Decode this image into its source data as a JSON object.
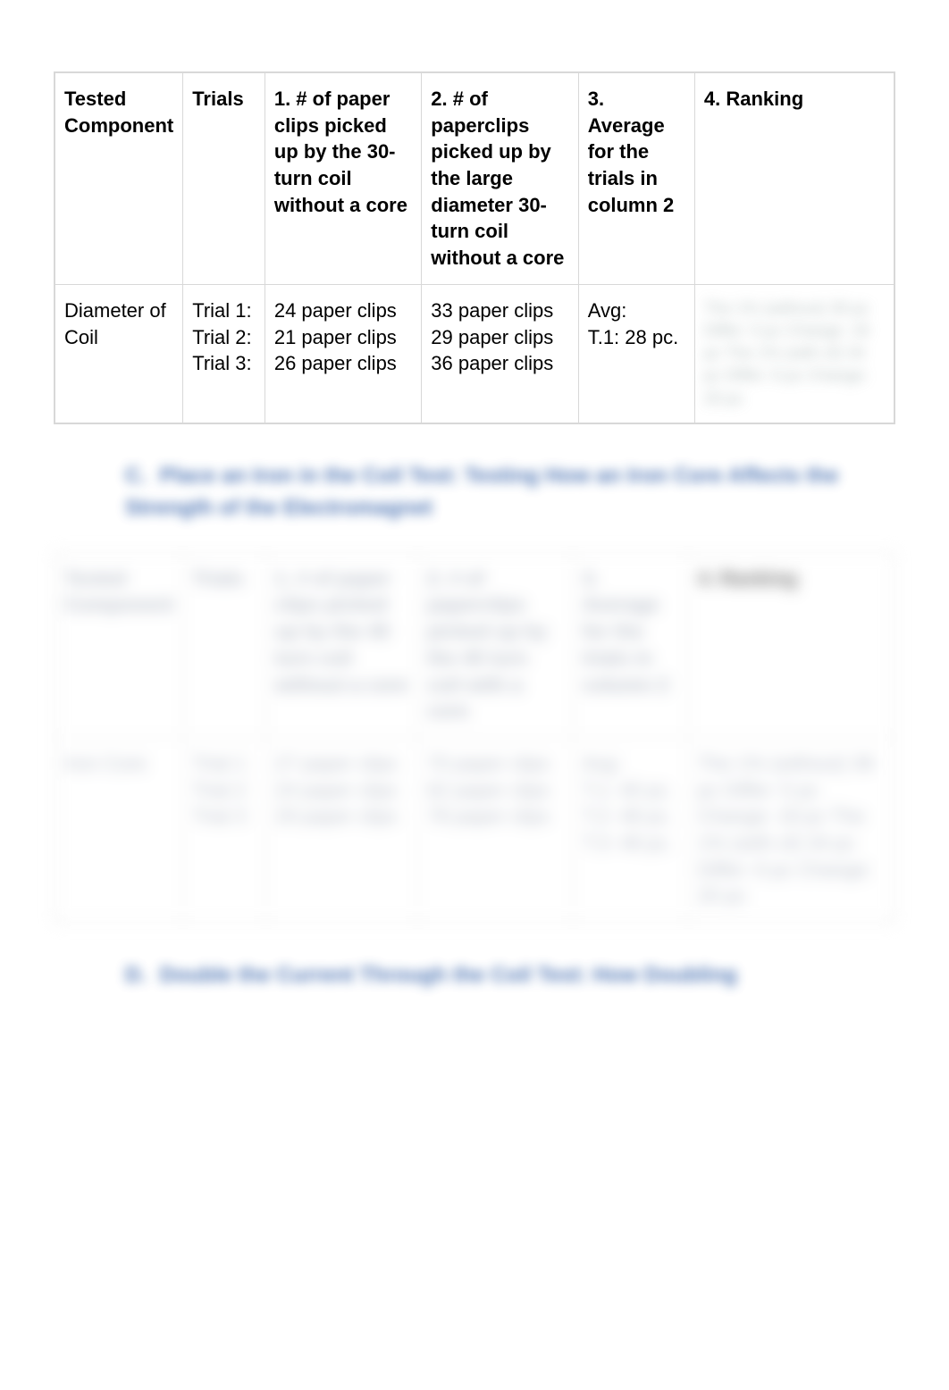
{
  "table1": {
    "headers": {
      "tested": "Tested Component",
      "trials": "Trials",
      "c1": "1. # of paper clips picked up by the 30-turn coil without a core",
      "c2": "2. # of paperclips picked up by the large diameter 30-turn coil without a core",
      "avg": "3. Average for the trials in column 2",
      "rank": "4. Ranking"
    },
    "row": {
      "tested": "Diameter of Coil",
      "trials": [
        "Trial 1:",
        "Trial 2:",
        "Trial 3:"
      ],
      "c1": [
        "24 paper clips",
        "21 paper clips",
        "26 paper clips"
      ],
      "c2": [
        "33 paper clips",
        "29 paper clips",
        "36 paper clips"
      ],
      "avg": [
        "Avg:",
        "T.1: 28 pc."
      ],
      "rank_blur": "The 1% (without) 30 pc Differ: 5 pc Change: 18 pc The 1% (with of) 34 pc Differ: 6 pc Change: 20 pc"
    }
  },
  "section_c": {
    "num": "C.",
    "text": "Place an Iron in the Coil Test: Testing How an Iron Core Affects the Strength of the Electromagnet"
  },
  "table2": {
    "headers": {
      "tested": "Tested Component",
      "trials": "Trials",
      "c1": "1. # of paper clips picked up by the 40 turn coil without a core",
      "c2": "2. # of paperclips picked up by the 40 turn coil with a core",
      "avg": "3. Average for the trials in column 2",
      "rank": "4. Ranking"
    },
    "row": {
      "tested": "Iron Core",
      "trials": [
        "Trial 1",
        "Trial 2",
        "Trial 3"
      ],
      "c1": [
        "27 paper clips",
        "24 paper clips",
        "29 paper clips"
      ],
      "c2": [
        "70 paper clips",
        "62 paper clips",
        "78 paper clips"
      ],
      "avg": [
        "Avg:",
        "T.1: 40 pc.",
        "T.2: 48 pc.",
        "T.3: 48 pc."
      ],
      "rank_blur": "The 1% (without) 38 pc Differ: 5 pc Change: 18 pc The 1% (with of) 34 pc Differ: 6 pc Change: 20 pc"
    }
  },
  "section_d": {
    "num": "D.",
    "text": "Double the Current Through the Coil Test: How Doubling"
  }
}
